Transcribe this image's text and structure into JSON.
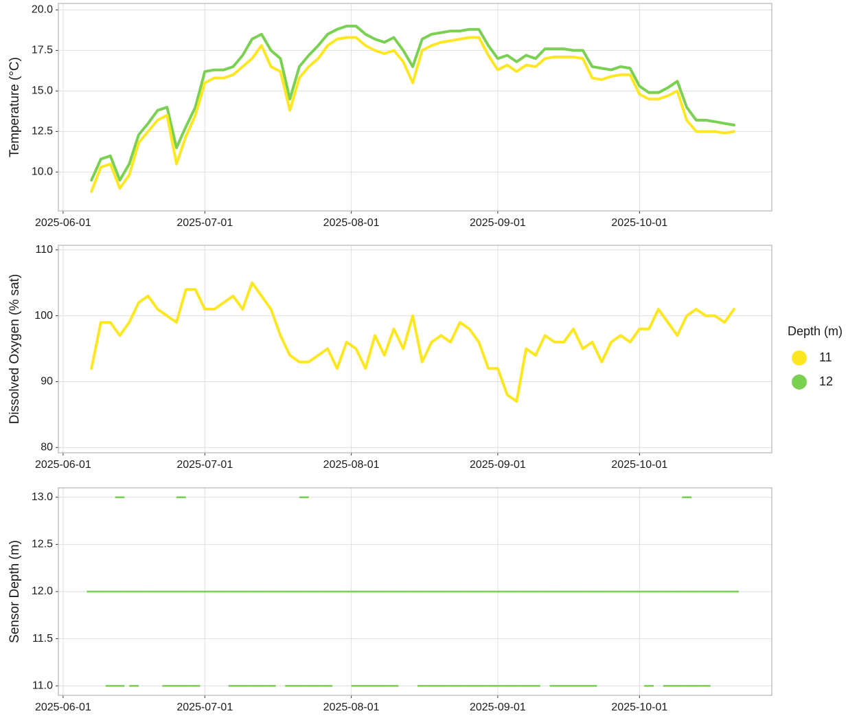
{
  "chart_data": [
    {
      "type": "line",
      "ylabel": "Temperature (°C)",
      "xlim": [
        "2025-05-31",
        "2025-10-29"
      ],
      "xticks": [
        "2025-06-01",
        "2025-07-01",
        "2025-08-01",
        "2025-09-01",
        "2025-10-01"
      ],
      "ylim": [
        7.6,
        20.4
      ],
      "yticks": [
        {
          "value": 10,
          "label": "10.0"
        },
        12.5,
        {
          "value": 15,
          "label": "15.0"
        },
        17.5,
        {
          "value": 20,
          "label": "20.0"
        }
      ],
      "grid": true,
      "x": [
        "2025-06-07",
        "2025-06-09",
        "2025-06-11",
        "2025-06-13",
        "2025-06-15",
        "2025-06-17",
        "2025-06-19",
        "2025-06-21",
        "2025-06-23",
        "2025-06-25",
        "2025-06-27",
        "2025-06-29",
        "2025-07-01",
        "2025-07-03",
        "2025-07-05",
        "2025-07-07",
        "2025-07-09",
        "2025-07-11",
        "2025-07-13",
        "2025-07-15",
        "2025-07-17",
        "2025-07-19",
        "2025-07-21",
        "2025-07-23",
        "2025-07-25",
        "2025-07-27",
        "2025-07-29",
        "2025-07-31",
        "2025-08-02",
        "2025-08-04",
        "2025-08-06",
        "2025-08-08",
        "2025-08-10",
        "2025-08-12",
        "2025-08-14",
        "2025-08-16",
        "2025-08-18",
        "2025-08-20",
        "2025-08-22",
        "2025-08-24",
        "2025-08-26",
        "2025-08-28",
        "2025-08-30",
        "2025-09-01",
        "2025-09-03",
        "2025-09-05",
        "2025-09-07",
        "2025-09-09",
        "2025-09-11",
        "2025-09-13",
        "2025-09-15",
        "2025-09-17",
        "2025-09-19",
        "2025-09-21",
        "2025-09-23",
        "2025-09-25",
        "2025-09-27",
        "2025-09-29",
        "2025-10-01",
        "2025-10-03",
        "2025-10-05",
        "2025-10-07",
        "2025-10-09",
        "2025-10-11",
        "2025-10-13",
        "2025-10-15",
        "2025-10-17",
        "2025-10-19",
        "2025-10-21"
      ],
      "series": [
        {
          "name": "11",
          "color": "#fde725",
          "values": [
            8.8,
            10.3,
            10.5,
            9.0,
            9.8,
            11.8,
            12.5,
            13.2,
            13.5,
            10.5,
            12.2,
            13.5,
            15.5,
            15.8,
            15.8,
            16.0,
            16.5,
            17.0,
            17.8,
            16.5,
            16.2,
            13.8,
            15.8,
            16.5,
            17.0,
            17.8,
            18.2,
            18.3,
            18.3,
            17.8,
            17.5,
            17.3,
            17.5,
            16.8,
            15.5,
            17.5,
            17.8,
            18.0,
            18.1,
            18.2,
            18.3,
            18.3,
            17.2,
            16.3,
            16.6,
            16.2,
            16.6,
            16.5,
            17.0,
            17.1,
            17.1,
            17.1,
            17.0,
            15.8,
            15.7,
            15.9,
            16.0,
            16.0,
            14.8,
            14.5,
            14.5,
            14.7,
            15.0,
            13.2,
            12.5,
            12.5,
            12.5,
            12.4,
            12.5
          ]
        },
        {
          "name": "12",
          "color": "#7ad151",
          "values": [
            9.5,
            10.8,
            11.0,
            9.5,
            10.5,
            12.3,
            13.0,
            13.8,
            14.0,
            11.5,
            12.8,
            14.0,
            16.2,
            16.3,
            16.3,
            16.5,
            17.2,
            18.2,
            18.5,
            17.5,
            17.0,
            14.5,
            16.5,
            17.2,
            17.8,
            18.5,
            18.8,
            19.0,
            19.0,
            18.5,
            18.2,
            18.0,
            18.3,
            17.5,
            16.5,
            18.2,
            18.5,
            18.6,
            18.7,
            18.7,
            18.8,
            18.8,
            17.8,
            17.0,
            17.2,
            16.8,
            17.2,
            17.0,
            17.6,
            17.6,
            17.6,
            17.5,
            17.5,
            16.5,
            16.4,
            16.3,
            16.5,
            16.4,
            15.3,
            14.9,
            14.9,
            15.2,
            15.6,
            14.0,
            13.2,
            13.2,
            13.1,
            13.0,
            12.9
          ]
        }
      ]
    },
    {
      "type": "line",
      "ylabel": "Dissolved Oxygen (% sat)",
      "xlim": [
        "2025-05-31",
        "2025-10-29"
      ],
      "xticks": [
        "2025-06-01",
        "2025-07-01",
        "2025-08-01",
        "2025-09-01",
        "2025-10-01"
      ],
      "ylim": [
        79.2,
        110.7
      ],
      "yticks": [
        80,
        90,
        100,
        110
      ],
      "grid": true,
      "x": [
        "2025-06-07",
        "2025-06-09",
        "2025-06-11",
        "2025-06-13",
        "2025-06-15",
        "2025-06-17",
        "2025-06-19",
        "2025-06-21",
        "2025-06-23",
        "2025-06-25",
        "2025-06-27",
        "2025-06-29",
        "2025-07-01",
        "2025-07-03",
        "2025-07-05",
        "2025-07-07",
        "2025-07-09",
        "2025-07-11",
        "2025-07-13",
        "2025-07-15",
        "2025-07-17",
        "2025-07-19",
        "2025-07-21",
        "2025-07-23",
        "2025-07-25",
        "2025-07-27",
        "2025-07-29",
        "2025-07-31",
        "2025-08-02",
        "2025-08-04",
        "2025-08-06",
        "2025-08-08",
        "2025-08-10",
        "2025-08-12",
        "2025-08-14",
        "2025-08-16",
        "2025-08-18",
        "2025-08-20",
        "2025-08-22",
        "2025-08-24",
        "2025-08-26",
        "2025-08-28",
        "2025-08-30",
        "2025-09-01",
        "2025-09-03",
        "2025-09-05",
        "2025-09-07",
        "2025-09-09",
        "2025-09-11",
        "2025-09-13",
        "2025-09-15",
        "2025-09-17",
        "2025-09-19",
        "2025-09-21",
        "2025-09-23",
        "2025-09-25",
        "2025-09-27",
        "2025-09-29",
        "2025-10-01",
        "2025-10-03",
        "2025-10-05",
        "2025-10-07",
        "2025-10-09",
        "2025-10-11",
        "2025-10-13",
        "2025-10-15",
        "2025-10-17",
        "2025-10-19",
        "2025-10-21"
      ],
      "series": [
        {
          "name": "11",
          "color": "#fde725",
          "values": [
            92,
            99,
            99,
            97,
            99,
            102,
            103,
            101,
            100,
            99,
            104,
            104,
            101,
            101,
            102,
            103,
            101,
            105,
            103,
            101,
            97,
            94,
            93,
            93,
            94,
            95,
            92,
            96,
            95,
            92,
            97,
            94,
            98,
            95,
            100,
            93,
            96,
            97,
            96,
            99,
            98,
            96,
            92,
            92,
            88,
            87,
            95,
            94,
            97,
            96,
            96,
            98,
            95,
            96,
            93,
            96,
            97,
            96,
            98,
            98,
            101,
            99,
            97,
            100,
            101,
            100,
            100,
            99,
            101
          ]
        }
      ]
    },
    {
      "type": "scatter",
      "ylabel": "Sensor Depth (m)",
      "xlim": [
        "2025-05-31",
        "2025-10-29"
      ],
      "xticks": [
        "2025-06-01",
        "2025-07-01",
        "2025-08-01",
        "2025-09-01",
        "2025-10-01"
      ],
      "ylim": [
        10.9,
        13.1
      ],
      "yticks": [
        {
          "value": 11,
          "label": "11.0"
        },
        11.5,
        {
          "value": 12,
          "label": "12.0"
        },
        12.5,
        {
          "value": 13,
          "label": "13.0"
        }
      ],
      "grid": true,
      "series": [
        {
          "name": "12",
          "color": "#7ad151",
          "x": [
            "2025-06-07",
            "2025-06-09",
            "2025-06-11",
            "2025-06-13",
            "2025-06-15",
            "2025-06-17",
            "2025-06-19",
            "2025-06-21",
            "2025-06-23",
            "2025-06-25",
            "2025-06-27",
            "2025-06-29",
            "2025-07-01",
            "2025-07-03",
            "2025-07-05",
            "2025-07-07",
            "2025-07-09",
            "2025-07-11",
            "2025-07-13",
            "2025-07-15",
            "2025-07-17",
            "2025-07-19",
            "2025-07-21",
            "2025-07-23",
            "2025-07-25",
            "2025-07-27",
            "2025-07-29",
            "2025-07-31",
            "2025-08-02",
            "2025-08-04",
            "2025-08-06",
            "2025-08-08",
            "2025-08-10",
            "2025-08-12",
            "2025-08-14",
            "2025-08-16",
            "2025-08-18",
            "2025-08-20",
            "2025-08-22",
            "2025-08-24",
            "2025-08-26",
            "2025-08-28",
            "2025-08-30",
            "2025-09-01",
            "2025-09-03",
            "2025-09-05",
            "2025-09-07",
            "2025-09-09",
            "2025-09-11",
            "2025-09-13",
            "2025-09-15",
            "2025-09-17",
            "2025-09-19",
            "2025-09-21",
            "2025-09-23",
            "2025-09-25",
            "2025-09-27",
            "2025-09-29",
            "2025-10-01",
            "2025-10-03",
            "2025-10-05",
            "2025-10-07",
            "2025-10-09",
            "2025-10-11",
            "2025-10-13",
            "2025-10-15",
            "2025-10-17",
            "2025-10-19",
            "2025-10-21",
            "2025-06-11",
            "2025-06-13",
            "2025-06-16",
            "2025-06-23",
            "2025-06-25",
            "2025-06-27",
            "2025-06-29",
            "2025-07-07",
            "2025-07-09",
            "2025-07-11",
            "2025-07-13",
            "2025-07-15",
            "2025-07-19",
            "2025-07-21",
            "2025-07-23",
            "2025-07-25",
            "2025-07-27",
            "2025-08-02",
            "2025-08-04",
            "2025-08-06",
            "2025-08-08",
            "2025-08-10",
            "2025-08-16",
            "2025-08-18",
            "2025-08-20",
            "2025-08-22",
            "2025-08-24",
            "2025-08-26",
            "2025-08-28",
            "2025-08-30",
            "2025-09-01",
            "2025-09-03",
            "2025-09-05",
            "2025-09-07",
            "2025-09-09",
            "2025-09-13",
            "2025-09-15",
            "2025-09-17",
            "2025-09-19",
            "2025-09-21",
            "2025-10-03",
            "2025-10-07",
            "2025-10-09",
            "2025-10-11",
            "2025-10-13",
            "2025-10-15",
            "2025-06-13",
            "2025-06-26",
            "2025-07-22",
            "2025-10-11"
          ],
          "values": [
            12,
            12,
            12,
            12,
            12,
            12,
            12,
            12,
            12,
            12,
            12,
            12,
            12,
            12,
            12,
            12,
            12,
            12,
            12,
            12,
            12,
            12,
            12,
            12,
            12,
            12,
            12,
            12,
            12,
            12,
            12,
            12,
            12,
            12,
            12,
            12,
            12,
            12,
            12,
            12,
            12,
            12,
            12,
            12,
            12,
            12,
            12,
            12,
            12,
            12,
            12,
            12,
            12,
            12,
            12,
            12,
            12,
            12,
            12,
            12,
            12,
            12,
            12,
            12,
            12,
            12,
            12,
            12,
            12,
            11,
            11,
            11,
            11,
            11,
            11,
            11,
            11,
            11,
            11,
            11,
            11,
            11,
            11,
            11,
            11,
            11,
            11,
            11,
            11,
            11,
            11,
            11,
            11,
            11,
            11,
            11,
            11,
            11,
            11,
            11,
            11,
            11,
            11,
            11,
            11,
            11,
            11,
            11,
            11,
            11,
            11,
            11,
            11,
            11,
            11,
            13,
            13,
            13,
            13
          ]
        }
      ]
    }
  ],
  "legend": {
    "title": "Depth (m)",
    "entries": [
      {
        "name": "11",
        "color": "#fde725"
      },
      {
        "name": "12",
        "color": "#7ad151"
      }
    ]
  }
}
